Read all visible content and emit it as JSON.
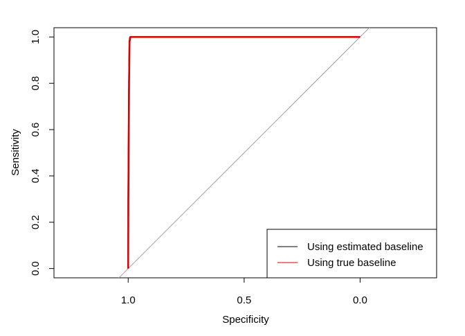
{
  "chart_data": {
    "type": "line",
    "xlabel": "Specificity",
    "ylabel": "Sensitivity",
    "x_reversed": true,
    "xlim": [
      1.32,
      -0.33
    ],
    "ylim": [
      -0.04,
      1.04
    ],
    "x_ticks": [
      {
        "value": 1.0,
        "label": "1.0"
      },
      {
        "value": 0.5,
        "label": "0.5"
      },
      {
        "value": 0.0,
        "label": "0.0"
      }
    ],
    "y_ticks": [
      {
        "value": 0.0,
        "label": "0.0"
      },
      {
        "value": 0.2,
        "label": "0.2"
      },
      {
        "value": 0.4,
        "label": "0.4"
      },
      {
        "value": 0.6,
        "label": "0.6"
      },
      {
        "value": 0.8,
        "label": "0.8"
      },
      {
        "value": 1.0,
        "label": "1.0"
      }
    ],
    "diagonal": {
      "color": "#a0a0a0"
    },
    "series": [
      {
        "name": "Using estimated baseline",
        "color": "#000000",
        "points": [
          [
            1.0,
            0.0
          ],
          [
            1.0,
            0.3
          ],
          [
            0.997,
            0.8
          ],
          [
            0.995,
            0.98
          ],
          [
            0.992,
            1.0
          ],
          [
            0.0,
            1.0
          ]
        ]
      },
      {
        "name": "Using true baseline",
        "color": "#dd0000",
        "points": [
          [
            1.0,
            0.0
          ],
          [
            0.999,
            0.3
          ],
          [
            0.996,
            0.8
          ],
          [
            0.994,
            0.98
          ],
          [
            0.99,
            1.0
          ],
          [
            0.0,
            1.0
          ]
        ]
      }
    ],
    "legend": {
      "position": "bottom-right"
    },
    "grid": false
  }
}
